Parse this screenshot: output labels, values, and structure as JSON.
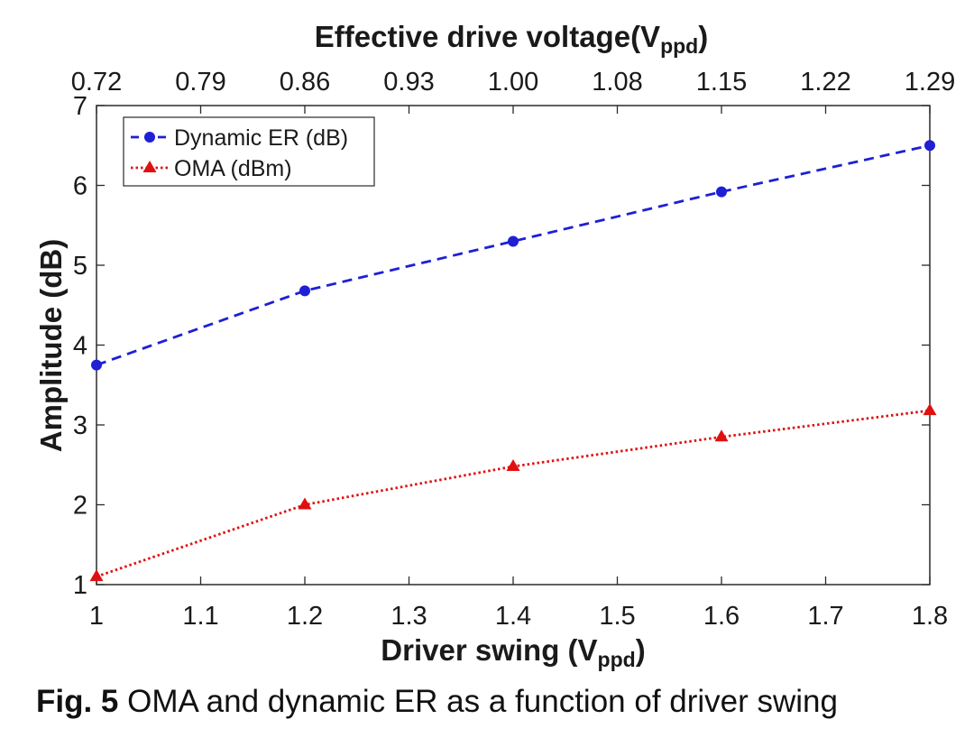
{
  "chart_data": {
    "type": "line",
    "top_axis_title": "Effective  drive  voltage(V",
    "top_axis_subscript": "ppd",
    "top_axis_title_close": ")",
    "top_ticks": [
      "0.72",
      "0.79",
      "0.86",
      "0.93",
      "1.00",
      "1.08",
      "1.15",
      "1.22",
      "1.29"
    ],
    "xlabel": "Driver  swing  (V",
    "xlabel_subscript": "ppd",
    "xlabel_close": ")",
    "ylabel": "Amplitude (dB)",
    "x_ticks": [
      "1",
      "1.1",
      "1.2",
      "1.3",
      "1.4",
      "1.5",
      "1.6",
      "1.7",
      "1.8"
    ],
    "y_ticks": [
      "1",
      "2",
      "3",
      "4",
      "5",
      "6",
      "7"
    ],
    "xlim": [
      1,
      1.8
    ],
    "ylim": [
      1,
      7
    ],
    "x": [
      1.0,
      1.2,
      1.4,
      1.6,
      1.8
    ],
    "series": [
      {
        "name": "Dynamic ER (dB)",
        "values": [
          3.75,
          4.68,
          5.3,
          5.92,
          6.5
        ],
        "color": "#1f1fd6",
        "style": "dashed",
        "marker": "circle"
      },
      {
        "name": "OMA (dBm)",
        "values": [
          1.1,
          2.0,
          2.48,
          2.85,
          3.18
        ],
        "color": "#e01010",
        "style": "dotted",
        "marker": "triangle"
      }
    ],
    "legend_position": "top-left",
    "grid": false
  },
  "caption": {
    "label": "Fig. 5",
    "text": " OMA and dynamic ER as a function of driver swing"
  }
}
